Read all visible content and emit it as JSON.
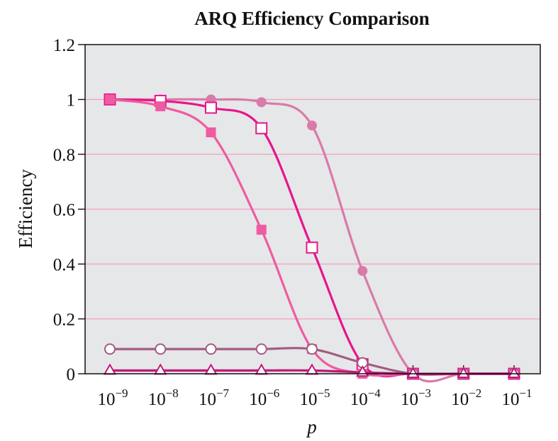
{
  "chart_data": {
    "type": "line",
    "title": "ARQ Efficiency Comparison",
    "xlabel": "p",
    "ylabel": "Efficiency",
    "x_scale": "log",
    "xlim": [
      1e-09,
      0.1
    ],
    "ylim": [
      0,
      1.2
    ],
    "yticks": [
      0,
      0.2,
      0.4,
      0.6,
      0.8,
      1,
      1.2
    ],
    "ytick_labels": [
      "0",
      "0.2",
      "0.4",
      "0.6",
      "0.8",
      "1",
      "1.2"
    ],
    "xtick_labels": [
      {
        "base": "10",
        "exp": "−9"
      },
      {
        "base": "10",
        "exp": "−8"
      },
      {
        "base": "10",
        "exp": "−7"
      },
      {
        "base": "10",
        "exp": "−6"
      },
      {
        "base": "10",
        "exp": "−5"
      },
      {
        "base": "10",
        "exp": "−4"
      },
      {
        "base": "10",
        "exp": "−3"
      },
      {
        "base": "10",
        "exp": "−2"
      },
      {
        "base": "10",
        "exp": "−1"
      }
    ],
    "x": [
      1e-09,
      1e-08,
      1e-07,
      1e-06,
      1e-05,
      0.0001,
      0.001,
      0.01,
      0.1
    ],
    "grid": "horizontal",
    "plot_background": "#e6e7e8",
    "gridline_color": "#f0a0c0",
    "series": [
      {
        "marker": "filled-circle",
        "color": "#d97aa8",
        "values": [
          1.0,
          1.0,
          1.0,
          0.99,
          0.905,
          0.375,
          0.0,
          0.0,
          0.0
        ]
      },
      {
        "marker": "open-square",
        "color": "#e6168c",
        "values": [
          1.0,
          0.995,
          0.97,
          0.895,
          0.46,
          0.035,
          0.0,
          0.0,
          0.0
        ]
      },
      {
        "marker": "filled-square",
        "color": "#ef5ba1",
        "values": [
          1.0,
          0.975,
          0.88,
          0.525,
          0.09,
          0.0,
          0.0,
          0.0,
          0.0
        ]
      },
      {
        "marker": "open-circle",
        "color": "#a35b83",
        "values": [
          0.09,
          0.09,
          0.09,
          0.09,
          0.09,
          0.04,
          0.0,
          0.0,
          0.0
        ]
      },
      {
        "marker": "open-triangle",
        "color": "#c0187a",
        "values": [
          0.012,
          0.012,
          0.012,
          0.012,
          0.012,
          0.005,
          0.0,
          0.0,
          0.0
        ]
      }
    ]
  }
}
